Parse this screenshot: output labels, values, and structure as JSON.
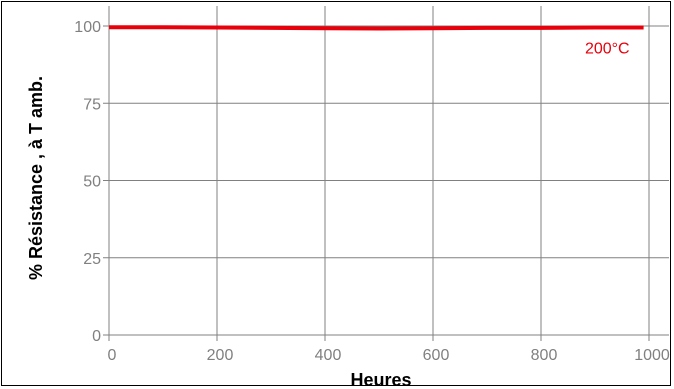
{
  "chart_data": {
    "type": "line",
    "title": "",
    "xlabel": "Heures",
    "ylabel": "% Résistance , à T amb.",
    "xlim": [
      0,
      1000
    ],
    "ylim": [
      0,
      100
    ],
    "xticks": [
      0,
      200,
      400,
      600,
      800,
      1000
    ],
    "yticks": [
      0,
      25,
      50,
      75,
      100
    ],
    "grid": true,
    "series": [
      {
        "name": "200°C",
        "color": "#e8000b",
        "x": [
          0,
          100,
          200,
          300,
          400,
          500,
          600,
          700,
          800,
          900,
          990
        ],
        "y": [
          99.6,
          99.6,
          99.5,
          99.4,
          99.3,
          99.2,
          99.3,
          99.4,
          99.4,
          99.5,
          99.5
        ]
      }
    ]
  }
}
